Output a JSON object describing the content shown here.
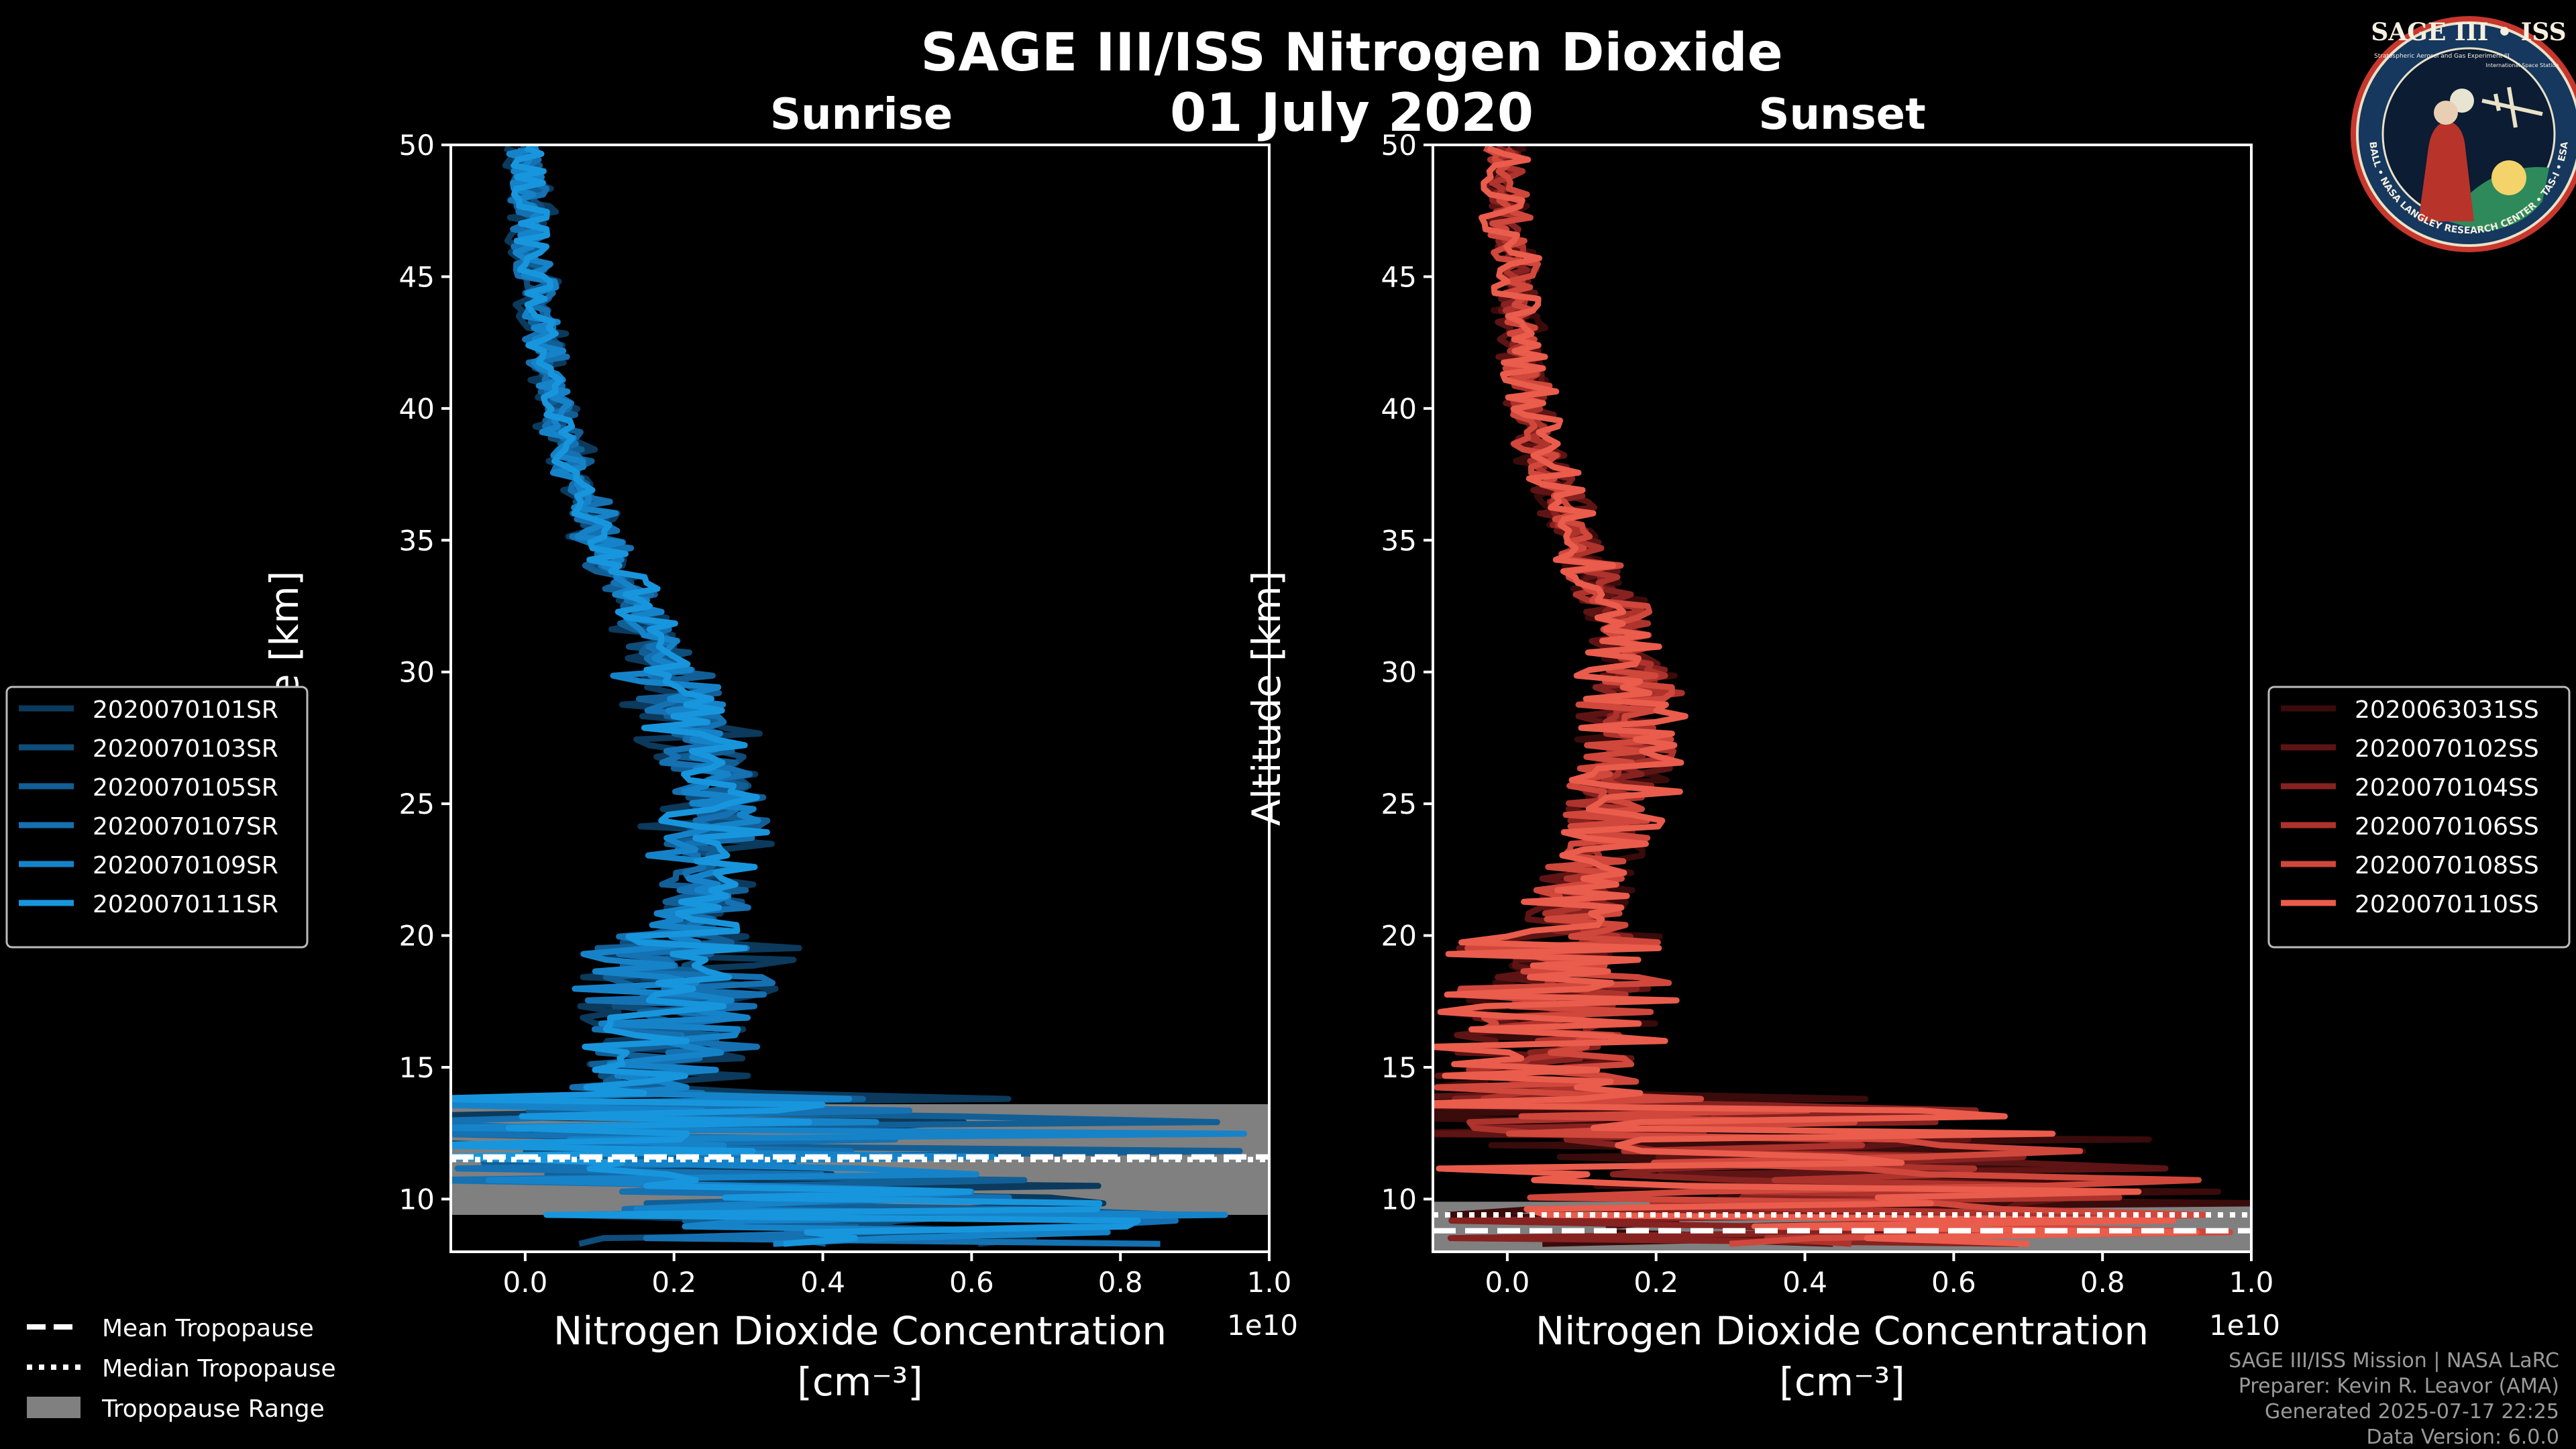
{
  "title": "SAGE III/ISS Nitrogen Dioxide",
  "date": "01 July 2020",
  "logo": {
    "top_text": "SAGE III • ISS",
    "ring_text": "BALL • NASA LANGLEY RESEARCH CENTER • TAS-I • ESA",
    "inner_text": "Stratospheric Aerosol and Gas Experiment III",
    "side_text": "International Space Station"
  },
  "legend_tropopause": [
    {
      "label": "Mean Tropopause",
      "style": "dashed"
    },
    {
      "label": "Median Tropopause",
      "style": "dotted"
    },
    {
      "label": "Tropopause Range",
      "style": "fill"
    }
  ],
  "credits": [
    "SAGE III/ISS Mission | NASA LaRC",
    "Preparer: Kevin R. Leavor (AMA)",
    "Generated 2025-07-17 22:25",
    "Data Version: 6.0.0"
  ],
  "chart_data": [
    {
      "type": "line",
      "title": "Sunrise",
      "xlabel": "Nitrogen Dioxide Concentration",
      "xunit": "[cm⁻³]",
      "x_offset_label": "1e10",
      "ylabel": "Altitude [km]",
      "xlim": [
        -0.1,
        1.0
      ],
      "ylim": [
        8,
        50
      ],
      "xticks": [
        "0.0",
        "0.2",
        "0.4",
        "0.6",
        "0.8",
        "1.0"
      ],
      "yticks": [
        "10",
        "15",
        "20",
        "25",
        "30",
        "35",
        "40",
        "45",
        "50"
      ],
      "tropopause": {
        "mean": 11.6,
        "median": 11.5,
        "range": [
          9.4,
          13.6
        ]
      },
      "series": [
        {
          "name": "2020070101SR",
          "color": "#0b3a5c"
        },
        {
          "name": "2020070103SR",
          "color": "#0f4d7a"
        },
        {
          "name": "2020070105SR",
          "color": "#125f96"
        },
        {
          "name": "2020070107SR",
          "color": "#1571b2"
        },
        {
          "name": "2020070109SR",
          "color": "#1683c9"
        },
        {
          "name": "2020070111SR",
          "color": "#1896dd"
        }
      ],
      "mean_profile": {
        "alt": [
          9,
          10,
          11,
          12,
          13,
          14,
          15,
          16,
          17,
          18,
          19,
          20,
          21,
          22,
          23,
          24,
          25,
          26,
          27,
          28,
          29,
          30,
          31,
          32,
          33,
          34,
          35,
          36,
          37,
          38,
          39,
          40,
          41,
          42,
          43,
          44,
          45,
          46,
          47,
          48,
          49,
          50
        ],
        "conc": [
          0.55,
          0.35,
          0.2,
          0.15,
          0.18,
          0.16,
          0.17,
          0.18,
          0.19,
          0.2,
          0.21,
          0.22,
          0.23,
          0.24,
          0.25,
          0.25,
          0.25,
          0.25,
          0.24,
          0.23,
          0.21,
          0.19,
          0.18,
          0.16,
          0.14,
          0.12,
          0.1,
          0.09,
          0.07,
          0.06,
          0.05,
          0.04,
          0.035,
          0.03,
          0.025,
          0.02,
          0.015,
          0.01,
          0.01,
          0.005,
          0.005,
          0.0
        ]
      }
    },
    {
      "type": "line",
      "title": "Sunset",
      "xlabel": "Nitrogen Dioxide Concentration",
      "xunit": "[cm⁻³]",
      "x_offset_label": "1e10",
      "ylabel": "Altitude [km]",
      "xlim": [
        -0.1,
        1.0
      ],
      "ylim": [
        8,
        50
      ],
      "xticks": [
        "0.0",
        "0.2",
        "0.4",
        "0.6",
        "0.8",
        "1.0"
      ],
      "yticks": [
        "10",
        "15",
        "20",
        "25",
        "30",
        "35",
        "40",
        "45",
        "50"
      ],
      "tropopause": {
        "mean": 8.8,
        "median": 9.4,
        "range": [
          8,
          9.9
        ]
      },
      "series": [
        {
          "name": "2020063031SS",
          "color": "#3a0b0b"
        },
        {
          "name": "2020070102SS",
          "color": "#5e1414"
        },
        {
          "name": "2020070104SS",
          "color": "#862220"
        },
        {
          "name": "2020070106SS",
          "color": "#ad332c"
        },
        {
          "name": "2020070108SS",
          "color": "#d0473c"
        },
        {
          "name": "2020070110SS",
          "color": "#ea5c4c"
        }
      ],
      "mean_profile": {
        "alt": [
          10,
          11,
          12,
          13,
          14,
          15,
          16,
          17,
          18,
          19,
          20,
          21,
          22,
          23,
          24,
          25,
          26,
          27,
          28,
          29,
          30,
          31,
          32,
          33,
          34,
          35,
          36,
          37,
          38,
          39,
          40,
          41,
          42,
          43,
          44,
          45,
          46,
          47,
          48,
          49,
          50
        ],
        "conc": [
          0.5,
          0.45,
          0.3,
          0.12,
          0.05,
          0.03,
          0.05,
          0.06,
          0.07,
          0.08,
          0.09,
          0.1,
          0.11,
          0.12,
          0.13,
          0.14,
          0.15,
          0.16,
          0.17,
          0.17,
          0.17,
          0.16,
          0.15,
          0.13,
          0.11,
          0.09,
          0.08,
          0.07,
          0.05,
          0.04,
          0.03,
          0.03,
          0.02,
          0.02,
          0.01,
          0.01,
          0.01,
          0.0,
          0.0,
          0.0,
          0.0
        ]
      }
    }
  ]
}
